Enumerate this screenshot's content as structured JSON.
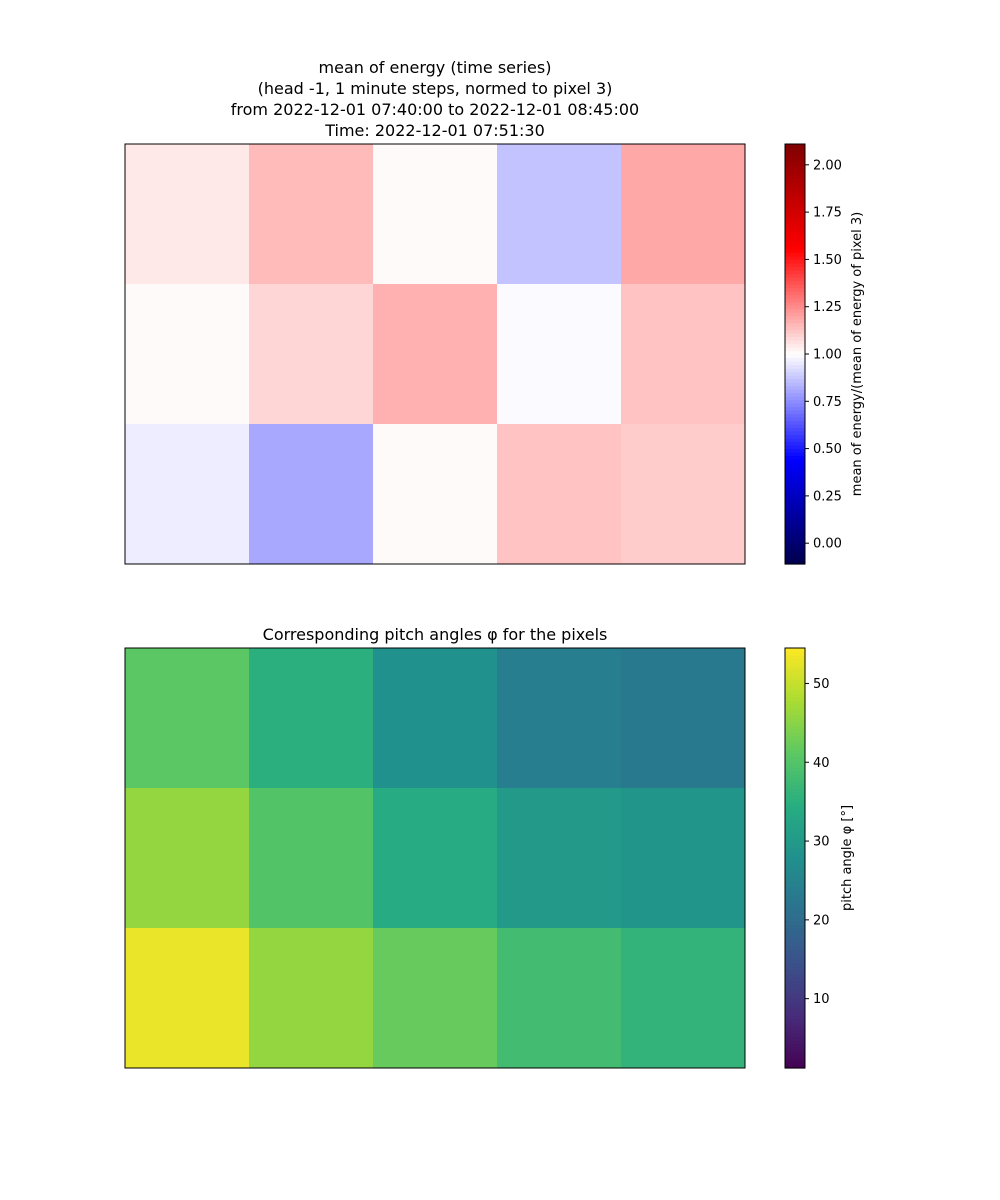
{
  "chart_data": [
    {
      "type": "heatmap",
      "title_lines": [
        "mean of energy (time series)",
        "(head -1, 1 minute steps, normed to pixel 3)",
        "from 2022-12-01 07:40:00 to 2022-12-01 08:45:00",
        "Time: 2022-12-01 07:51:30"
      ],
      "rows": 3,
      "cols": 5,
      "values": [
        [
          1.05,
          1.15,
          1.01,
          0.87,
          1.19
        ],
        [
          1.01,
          1.09,
          1.17,
          0.99,
          1.13
        ],
        [
          0.96,
          0.81,
          1.01,
          1.13,
          1.11
        ]
      ],
      "colormap": "seismic",
      "colorbar": {
        "label": "mean of energy/(mean of energy of pixel 3)",
        "range": [
          -0.11,
          2.11
        ],
        "ticks": [
          "0.00",
          "0.25",
          "0.50",
          "0.75",
          "1.00",
          "1.25",
          "1.50",
          "1.75",
          "2.00"
        ]
      },
      "axes_visible": false
    },
    {
      "type": "heatmap",
      "title": "Corresponding pitch angles φ for the pixels",
      "rows": 3,
      "cols": 5,
      "values": [
        [
          41,
          35,
          28,
          24,
          23
        ],
        [
          46,
          40,
          34,
          30,
          29
        ],
        [
          53,
          46,
          42,
          38,
          36
        ]
      ],
      "colormap": "viridis",
      "colorbar": {
        "label": "pitch angle φ [°]",
        "range": [
          1.2,
          54.5
        ],
        "ticks": [
          "10",
          "20",
          "30",
          "40",
          "50"
        ]
      },
      "axes_visible": false
    }
  ]
}
